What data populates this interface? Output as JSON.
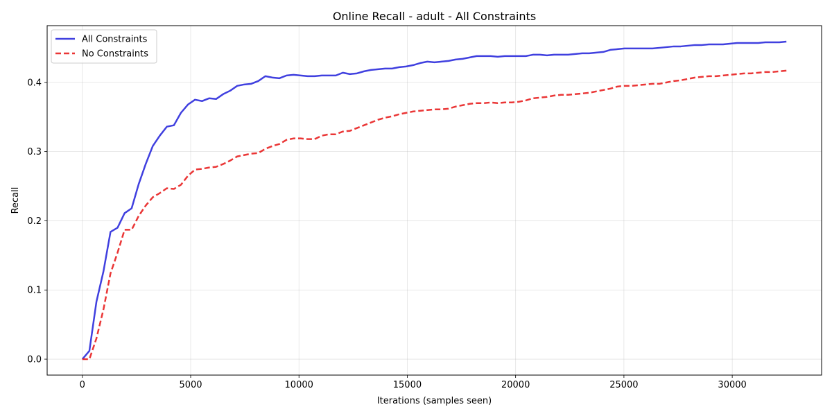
{
  "chart_data": {
    "type": "line",
    "title": "Online Recall - adult - All Constraints",
    "xlabel": "Iterations (samples seen)",
    "ylabel": "Recall",
    "xlim": [
      -1625,
      34125
    ],
    "ylim": [
      -0.023,
      0.482
    ],
    "xticks": [
      0,
      5000,
      10000,
      15000,
      20000,
      25000,
      30000
    ],
    "yticks": [
      0.0,
      0.1,
      0.2,
      0.3,
      0.4
    ],
    "xtick_labels": [
      "0",
      "5000",
      "10000",
      "15000",
      "20000",
      "25000",
      "30000"
    ],
    "ytick_labels": [
      "0.0",
      "0.1",
      "0.2",
      "0.3",
      "0.4"
    ],
    "grid": true,
    "legend_position": "top-left",
    "series": [
      {
        "name": "All Constraints",
        "color": "#2b2bdc",
        "style": "solid",
        "x": [
          0,
          325,
          650,
          975,
          1300,
          1625,
          1950,
          2275,
          2600,
          2925,
          3250,
          3575,
          3900,
          4225,
          4550,
          4875,
          5200,
          5525,
          5850,
          6175,
          6500,
          6825,
          7150,
          7475,
          7800,
          8125,
          8450,
          8775,
          9100,
          9425,
          9750,
          10075,
          10400,
          10725,
          11050,
          11375,
          11700,
          12025,
          12350,
          12675,
          13000,
          13325,
          13650,
          13975,
          14300,
          14625,
          14950,
          15275,
          15600,
          15925,
          16250,
          16575,
          16900,
          17225,
          17550,
          17875,
          18200,
          18525,
          18850,
          19175,
          19500,
          19825,
          20150,
          20475,
          20800,
          21125,
          21450,
          21775,
          22100,
          22425,
          22750,
          23075,
          23400,
          23725,
          24050,
          24375,
          24700,
          25025,
          25350,
          25675,
          26000,
          26325,
          26650,
          26975,
          27300,
          27625,
          27950,
          28275,
          28600,
          28925,
          29250,
          29575,
          29900,
          30225,
          30550,
          30875,
          31200,
          31525,
          31850,
          32175,
          32500
        ],
        "y": [
          0.0,
          0.012,
          0.083,
          0.127,
          0.184,
          0.19,
          0.211,
          0.218,
          0.253,
          0.282,
          0.308,
          0.323,
          0.336,
          0.338,
          0.356,
          0.368,
          0.375,
          0.373,
          0.377,
          0.376,
          0.383,
          0.388,
          0.395,
          0.397,
          0.398,
          0.402,
          0.409,
          0.407,
          0.406,
          0.41,
          0.411,
          0.41,
          0.409,
          0.409,
          0.41,
          0.41,
          0.41,
          0.414,
          0.412,
          0.413,
          0.416,
          0.418,
          0.419,
          0.42,
          0.42,
          0.422,
          0.423,
          0.425,
          0.428,
          0.43,
          0.429,
          0.43,
          0.431,
          0.433,
          0.434,
          0.436,
          0.438,
          0.438,
          0.438,
          0.437,
          0.438,
          0.438,
          0.438,
          0.438,
          0.44,
          0.44,
          0.439,
          0.44,
          0.44,
          0.44,
          0.441,
          0.442,
          0.442,
          0.443,
          0.444,
          0.447,
          0.448,
          0.449,
          0.449,
          0.449,
          0.449,
          0.449,
          0.45,
          0.451,
          0.452,
          0.452,
          0.453,
          0.454,
          0.454,
          0.455,
          0.455,
          0.455,
          0.456,
          0.457,
          0.457,
          0.457,
          0.457,
          0.458,
          0.458,
          0.458,
          0.459
        ]
      },
      {
        "name": "No Constraints",
        "color": "#e82020",
        "style": "dashed",
        "x": [
          0,
          325,
          650,
          975,
          1300,
          1625,
          1950,
          2275,
          2600,
          2925,
          3250,
          3575,
          3900,
          4225,
          4550,
          4875,
          5200,
          5525,
          5850,
          6175,
          6500,
          6825,
          7150,
          7475,
          7800,
          8125,
          8450,
          8775,
          9100,
          9425,
          9750,
          10075,
          10400,
          10725,
          11050,
          11375,
          11700,
          12025,
          12350,
          12675,
          13000,
          13325,
          13650,
          13975,
          14300,
          14625,
          14950,
          15275,
          15600,
          15925,
          16250,
          16575,
          16900,
          17225,
          17550,
          17875,
          18200,
          18525,
          18850,
          19175,
          19500,
          19825,
          20150,
          20475,
          20800,
          21125,
          21450,
          21775,
          22100,
          22425,
          22750,
          23075,
          23400,
          23725,
          24050,
          24375,
          24700,
          25025,
          25350,
          25675,
          26000,
          26325,
          26650,
          26975,
          27300,
          27625,
          27950,
          28275,
          28600,
          28925,
          29250,
          29575,
          29900,
          30225,
          30550,
          30875,
          31200,
          31525,
          31850,
          32175,
          32500
        ],
        "y": [
          0.0,
          0.0,
          0.03,
          0.072,
          0.124,
          0.154,
          0.187,
          0.187,
          0.207,
          0.222,
          0.234,
          0.24,
          0.247,
          0.246,
          0.252,
          0.265,
          0.274,
          0.275,
          0.277,
          0.278,
          0.282,
          0.287,
          0.293,
          0.295,
          0.297,
          0.298,
          0.304,
          0.308,
          0.311,
          0.317,
          0.319,
          0.319,
          0.318,
          0.318,
          0.323,
          0.325,
          0.325,
          0.329,
          0.33,
          0.334,
          0.338,
          0.342,
          0.346,
          0.349,
          0.351,
          0.354,
          0.356,
          0.358,
          0.359,
          0.36,
          0.361,
          0.361,
          0.362,
          0.365,
          0.367,
          0.369,
          0.37,
          0.37,
          0.371,
          0.37,
          0.371,
          0.371,
          0.372,
          0.374,
          0.377,
          0.378,
          0.379,
          0.381,
          0.382,
          0.382,
          0.383,
          0.384,
          0.385,
          0.387,
          0.389,
          0.391,
          0.394,
          0.395,
          0.395,
          0.396,
          0.397,
          0.398,
          0.398,
          0.4,
          0.402,
          0.403,
          0.405,
          0.407,
          0.408,
          0.409,
          0.409,
          0.41,
          0.411,
          0.412,
          0.413,
          0.413,
          0.414,
          0.415,
          0.415,
          0.416,
          0.417
        ]
      }
    ]
  }
}
